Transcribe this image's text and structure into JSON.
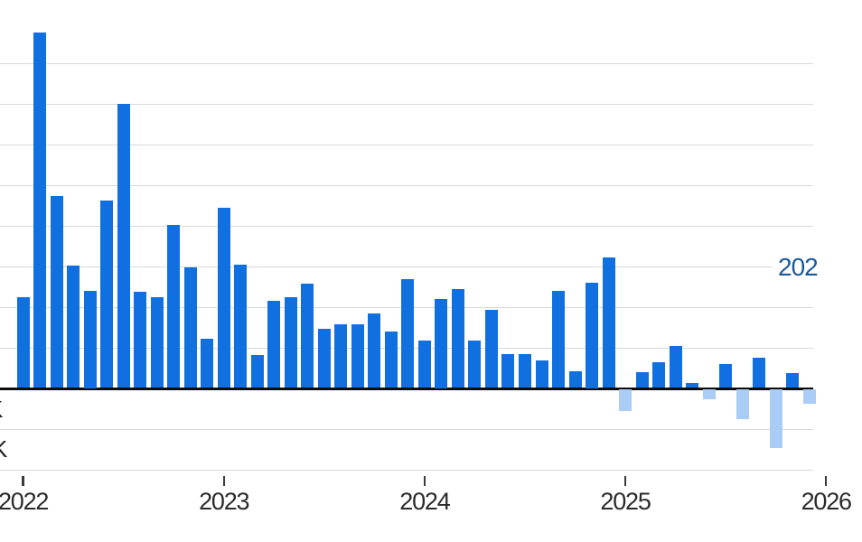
{
  "chart_data": {
    "type": "bar",
    "unit": "K",
    "grid": true,
    "ylim": [
      -100,
      440
    ],
    "gridline_step": 50,
    "x_year_ticks": [
      "2022",
      "2023",
      "2024",
      "2025",
      "2026"
    ],
    "months": [
      "Jan 2022",
      "Feb 2022",
      "Mar 2022",
      "Apr 2022",
      "May 2022",
      "Jun 2022",
      "Jul 2022",
      "Aug 2022",
      "Sep 2022",
      "Oct 2022",
      "Nov 2022",
      "Dec 2022",
      "Jan 2023",
      "Feb 2023",
      "Mar 2023",
      "Apr 2023",
      "May 2023",
      "Jun 2023",
      "Jul 2023",
      "Aug 2023",
      "Sep 2023",
      "Oct 2023",
      "Nov 2023",
      "Dec 2023",
      "Jan 2024",
      "Feb 2024",
      "Mar 2024",
      "Apr 2024",
      "May 2024",
      "Jun 2024",
      "Jul 2024",
      "Aug 2024",
      "Sep 2024",
      "Oct 2024",
      "Nov 2024",
      "Dec 2024",
      "Jan 2025",
      "Feb 2025",
      "Mar 2025",
      "Apr 2025",
      "May 2025",
      "Jun 2025",
      "Jul 2025",
      "Aug 2025",
      "Sep 2025",
      "Oct 2025",
      "Nov 2025",
      "Dec 2025"
    ],
    "values": [
      112,
      437,
      236,
      151,
      120,
      231,
      349,
      118,
      112,
      201,
      148,
      61,
      222,
      152,
      41,
      107,
      112,
      128,
      73,
      78,
      78,
      92,
      69,
      134,
      58,
      110,
      122,
      58,
      96,
      42,
      42,
      34,
      119,
      21,
      130,
      161,
      -27,
      19,
      32,
      52,
      6,
      -13,
      29,
      -37,
      37,
      -73,
      18,
      -18
    ],
    "positive_color": "#1170e0",
    "negative_color": "#a9cdf7",
    "y_axis_clipped_labels": [
      {
        "text": "K"
      },
      {
        "text": "K"
      }
    ],
    "annotation": {
      "text": "202",
      "color": "#1a5a9b"
    }
  }
}
